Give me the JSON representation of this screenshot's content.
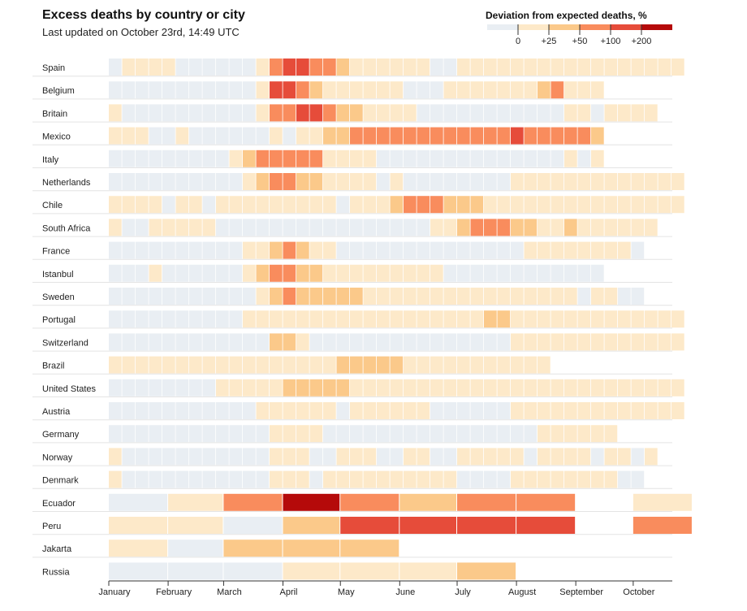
{
  "header": {
    "title": "Excess deaths by country or city",
    "subtitle": "Last updated on October 23rd, 14:49 UTC"
  },
  "legend": {
    "title": "Deviation from expected deaths, %",
    "ticks": [
      "0",
      "+25",
      "+50",
      "+100",
      "+200"
    ],
    "colors": [
      "#e9eef3",
      "#fde9c9",
      "#fbc98a",
      "#f98c5d",
      "#e64c3a",
      "#b50a0a"
    ]
  },
  "chart_data": {
    "type": "heatmap",
    "title": "Excess deaths by country or city",
    "subtitle": "Last updated on October 23rd, 14:49 UTC",
    "color_scale": {
      "label": "Deviation from expected deaths, %",
      "levels": [
        {
          "level": 0,
          "range": "< 0",
          "color": "#e9eef3"
        },
        {
          "level": 1,
          "range": "0 to +25",
          "color": "#fde9c9"
        },
        {
          "level": 2,
          "range": "+25 to +50",
          "color": "#fbc98a"
        },
        {
          "level": 3,
          "range": "+50 to +100",
          "color": "#f98c5d"
        },
        {
          "level": 4,
          "range": "+100 to +200",
          "color": "#e64c3a"
        },
        {
          "level": 5,
          "range": "> +200",
          "color": "#b50a0a"
        }
      ]
    },
    "x_axis": {
      "months": [
        "January",
        "February",
        "March",
        "April",
        "May",
        "June",
        "July",
        "August",
        "September",
        "October"
      ],
      "range": [
        "2020-01-01",
        "2020-10-31"
      ]
    },
    "series": [
      {
        "name": "Spain",
        "period": "week",
        "start_week": 1,
        "values": [
          0,
          1,
          1,
          1,
          1,
          0,
          0,
          0,
          0,
          0,
          0,
          1,
          3,
          4,
          4,
          3,
          3,
          2,
          1,
          1,
          1,
          1,
          1,
          1,
          0,
          0,
          1,
          1,
          1,
          1,
          1,
          1,
          1,
          1,
          1,
          1,
          1,
          1,
          1,
          1,
          1,
          1,
          1
        ]
      },
      {
        "name": "Belgium",
        "period": "week",
        "start_week": 1,
        "values": [
          0,
          0,
          0,
          0,
          0,
          0,
          0,
          0,
          0,
          0,
          0,
          1,
          4,
          4,
          3,
          2,
          1,
          1,
          1,
          1,
          1,
          1,
          0,
          0,
          0,
          1,
          1,
          1,
          1,
          1,
          1,
          1,
          2,
          3,
          1,
          1,
          1
        ]
      },
      {
        "name": "Britain",
        "period": "week",
        "start_week": 1,
        "values": [
          1,
          0,
          0,
          0,
          0,
          0,
          0,
          0,
          0,
          0,
          0,
          1,
          3,
          3,
          4,
          4,
          3,
          2,
          2,
          1,
          1,
          1,
          1,
          0,
          0,
          0,
          0,
          0,
          0,
          0,
          0,
          0,
          0,
          0,
          1,
          1,
          0,
          1,
          1,
          1,
          1
        ]
      },
      {
        "name": "Mexico",
        "period": "week",
        "start_week": 1,
        "values": [
          1,
          1,
          1,
          0,
          0,
          1,
          0,
          0,
          0,
          0,
          0,
          0,
          1,
          0,
          1,
          1,
          2,
          2,
          3,
          3,
          3,
          3,
          3,
          3,
          3,
          3,
          3,
          3,
          3,
          3,
          4,
          3,
          3,
          3,
          3,
          3,
          2
        ]
      },
      {
        "name": "Italy",
        "period": "week",
        "start_week": 1,
        "values": [
          0,
          0,
          0,
          0,
          0,
          0,
          0,
          0,
          0,
          1,
          2,
          3,
          3,
          3,
          3,
          3,
          1,
          1,
          1,
          1,
          0,
          0,
          0,
          0,
          0,
          0,
          0,
          0,
          0,
          0,
          0,
          0,
          0,
          0,
          1,
          0,
          1
        ]
      },
      {
        "name": "Netherlands",
        "period": "week",
        "start_week": 1,
        "values": [
          0,
          0,
          0,
          0,
          0,
          0,
          0,
          0,
          0,
          0,
          1,
          2,
          3,
          3,
          2,
          2,
          1,
          1,
          1,
          1,
          0,
          1,
          0,
          0,
          0,
          0,
          0,
          0,
          0,
          0,
          1,
          1,
          1,
          1,
          1,
          1,
          1,
          1,
          1,
          1,
          1,
          1,
          1
        ]
      },
      {
        "name": "Chile",
        "period": "week",
        "start_week": 1,
        "values": [
          1,
          1,
          1,
          1,
          0,
          1,
          1,
          0,
          1,
          1,
          1,
          1,
          1,
          1,
          1,
          1,
          1,
          0,
          1,
          1,
          1,
          2,
          3,
          3,
          3,
          2,
          2,
          2,
          1,
          1,
          1,
          1,
          1,
          1,
          1,
          1,
          1,
          1,
          1,
          1,
          1,
          1,
          1
        ]
      },
      {
        "name": "South Africa",
        "period": "week",
        "start_week": 1,
        "values": [
          1,
          0,
          0,
          1,
          1,
          1,
          1,
          1,
          0,
          0,
          0,
          0,
          0,
          0,
          0,
          0,
          0,
          0,
          0,
          0,
          0,
          0,
          0,
          0,
          1,
          1,
          2,
          3,
          3,
          3,
          2,
          2,
          1,
          1,
          2,
          1,
          1,
          1,
          1,
          1,
          1
        ]
      },
      {
        "name": "France",
        "period": "week",
        "start_week": 1,
        "values": [
          0,
          0,
          0,
          0,
          0,
          0,
          0,
          0,
          0,
          0,
          1,
          1,
          2,
          3,
          2,
          1,
          1,
          0,
          0,
          0,
          0,
          0,
          0,
          0,
          0,
          0,
          0,
          0,
          0,
          0,
          0,
          1,
          1,
          1,
          1,
          1,
          1,
          1,
          1,
          0
        ]
      },
      {
        "name": "Istanbul",
        "period": "week",
        "start_week": 1,
        "values": [
          0,
          0,
          0,
          1,
          0,
          0,
          0,
          0,
          0,
          0,
          1,
          2,
          3,
          3,
          2,
          2,
          1,
          1,
          1,
          1,
          1,
          1,
          1,
          1,
          1,
          0,
          0,
          0,
          0,
          0,
          0,
          0,
          0,
          0,
          0,
          0,
          0
        ]
      },
      {
        "name": "Sweden",
        "period": "week",
        "start_week": 1,
        "values": [
          0,
          0,
          0,
          0,
          0,
          0,
          0,
          0,
          0,
          0,
          0,
          1,
          2,
          3,
          2,
          2,
          2,
          2,
          2,
          1,
          1,
          1,
          1,
          1,
          1,
          1,
          1,
          1,
          1,
          1,
          1,
          1,
          1,
          1,
          1,
          0,
          1,
          1,
          0,
          0
        ]
      },
      {
        "name": "Portugal",
        "period": "week",
        "start_week": 1,
        "values": [
          0,
          0,
          0,
          0,
          0,
          0,
          0,
          0,
          0,
          0,
          1,
          1,
          1,
          1,
          1,
          1,
          1,
          1,
          1,
          1,
          1,
          1,
          1,
          1,
          1,
          1,
          1,
          1,
          2,
          2,
          1,
          1,
          1,
          1,
          1,
          1,
          1,
          1,
          1,
          1,
          1,
          1,
          1
        ]
      },
      {
        "name": "Switzerland",
        "period": "week",
        "start_week": 1,
        "values": [
          0,
          0,
          0,
          0,
          0,
          0,
          0,
          0,
          0,
          0,
          0,
          0,
          2,
          2,
          1,
          0,
          0,
          0,
          0,
          0,
          0,
          0,
          0,
          0,
          0,
          0,
          0,
          0,
          0,
          0,
          1,
          1,
          1,
          1,
          1,
          1,
          1,
          1,
          1,
          1,
          1,
          1,
          1
        ]
      },
      {
        "name": "Brazil",
        "period": "week",
        "start_week": 1,
        "values": [
          1,
          1,
          1,
          1,
          1,
          1,
          1,
          1,
          1,
          1,
          1,
          1,
          1,
          1,
          1,
          1,
          1,
          2,
          2,
          2,
          2,
          2,
          1,
          1,
          1,
          1,
          1,
          1,
          1,
          1,
          1,
          1,
          1
        ]
      },
      {
        "name": "United States",
        "period": "week",
        "start_week": 1,
        "values": [
          0,
          0,
          0,
          0,
          0,
          0,
          0,
          0,
          1,
          1,
          1,
          1,
          1,
          2,
          2,
          2,
          2,
          2,
          1,
          1,
          1,
          1,
          1,
          1,
          1,
          1,
          1,
          1,
          1,
          1,
          1,
          1,
          1,
          1,
          1,
          1,
          1,
          1,
          1,
          1,
          1,
          1,
          1
        ]
      },
      {
        "name": "Austria",
        "period": "week",
        "start_week": 1,
        "values": [
          0,
          0,
          0,
          0,
          0,
          0,
          0,
          0,
          0,
          0,
          0,
          1,
          1,
          1,
          1,
          1,
          1,
          0,
          1,
          1,
          1,
          1,
          1,
          1,
          0,
          0,
          0,
          0,
          0,
          0,
          1,
          1,
          1,
          1,
          1,
          1,
          1,
          1,
          1,
          1,
          1,
          1,
          1
        ]
      },
      {
        "name": "Germany",
        "period": "week",
        "start_week": 1,
        "values": [
          0,
          0,
          0,
          0,
          0,
          0,
          0,
          0,
          0,
          0,
          0,
          0,
          1,
          1,
          1,
          1,
          0,
          0,
          0,
          0,
          0,
          0,
          0,
          0,
          0,
          0,
          0,
          0,
          0,
          0,
          0,
          0,
          1,
          1,
          1,
          1,
          1,
          1
        ]
      },
      {
        "name": "Norway",
        "period": "week",
        "start_week": 1,
        "values": [
          1,
          0,
          0,
          0,
          0,
          0,
          0,
          0,
          0,
          0,
          0,
          0,
          1,
          1,
          1,
          0,
          0,
          1,
          1,
          1,
          0,
          0,
          1,
          1,
          0,
          0,
          1,
          1,
          1,
          1,
          1,
          0,
          1,
          1,
          1,
          1,
          0,
          1,
          1,
          0,
          1
        ]
      },
      {
        "name": "Denmark",
        "period": "week",
        "start_week": 1,
        "values": [
          1,
          0,
          0,
          0,
          0,
          0,
          0,
          0,
          0,
          0,
          0,
          0,
          1,
          1,
          1,
          0,
          1,
          1,
          1,
          1,
          1,
          1,
          1,
          1,
          1,
          1,
          0,
          0,
          0,
          0,
          1,
          1,
          1,
          1,
          1,
          1,
          1,
          1,
          0,
          0
        ]
      },
      {
        "name": "Ecuador",
        "period": "month",
        "values": [
          0,
          1,
          3,
          5,
          3,
          2,
          3,
          3,
          null,
          1
        ]
      },
      {
        "name": "Peru",
        "period": "month",
        "values": [
          1,
          1,
          0,
          2,
          4,
          4,
          4,
          4,
          null,
          3
        ]
      },
      {
        "name": "Jakarta",
        "period": "month",
        "values": [
          1,
          0,
          2,
          2,
          2
        ]
      },
      {
        "name": "Russia",
        "period": "month",
        "values": [
          0,
          0,
          0,
          1,
          1,
          1,
          2
        ]
      }
    ]
  }
}
